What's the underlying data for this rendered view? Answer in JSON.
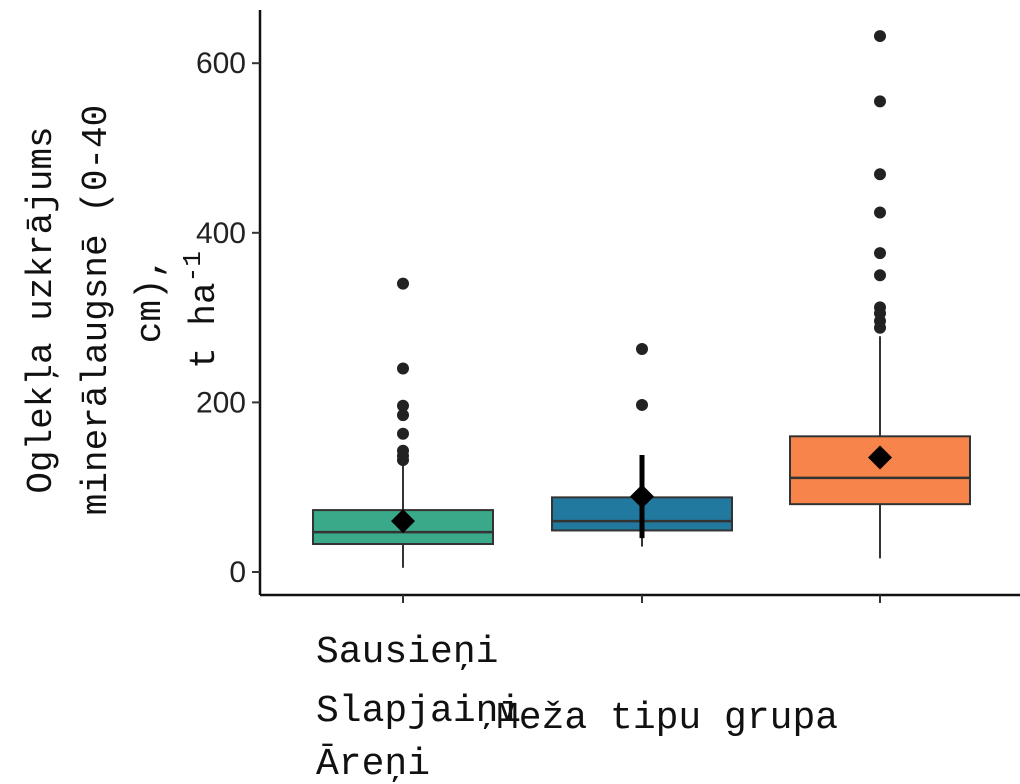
{
  "chart_data": {
    "type": "boxplot",
    "ylabel_lines": [
      "Oglekļa uzkrājums",
      "minerālaugsnē (0-40",
      "cm),",
      "t ha",
      "-1"
    ],
    "ylabel_text": "Oglekļa uzkrājums minerālaugsnē (0-40 cm), t ha-1",
    "xlabel": "Meža tipu grupa",
    "categories": [
      "Sausieņi",
      "Slapjaiņi",
      "Āreņi"
    ],
    "yticks": [
      0,
      200,
      400,
      600
    ],
    "ylim": [
      -30,
      660
    ],
    "grid": false,
    "series": [
      {
        "category": "Sausieņi",
        "color": "#3aa98a",
        "q1": 33,
        "median": 47,
        "q3": 73,
        "whisker_low": 5,
        "whisker_high": 127,
        "mean": 60,
        "mean_ci": [
          55,
          65
        ],
        "outliers": [
          132,
          137,
          143,
          163,
          185,
          196,
          240,
          340
        ]
      },
      {
        "category": "Slapjaiņi",
        "color": "#21799f",
        "q1": 49,
        "median": 60,
        "q3": 88,
        "whisker_low": 30,
        "whisker_high": 136,
        "mean": 89,
        "mean_ci": [
          40,
          138
        ],
        "outliers": [
          197,
          263
        ]
      },
      {
        "category": "Āreņi",
        "color": "#f7844a",
        "q1": 80,
        "median": 111,
        "q3": 160,
        "whisker_low": 16,
        "whisker_high": 278,
        "mean": 135,
        "mean_ci": [
          126,
          145
        ],
        "outliers": [
          288,
          296,
          305,
          312,
          350,
          376,
          424,
          469,
          555,
          632
        ]
      }
    ]
  }
}
